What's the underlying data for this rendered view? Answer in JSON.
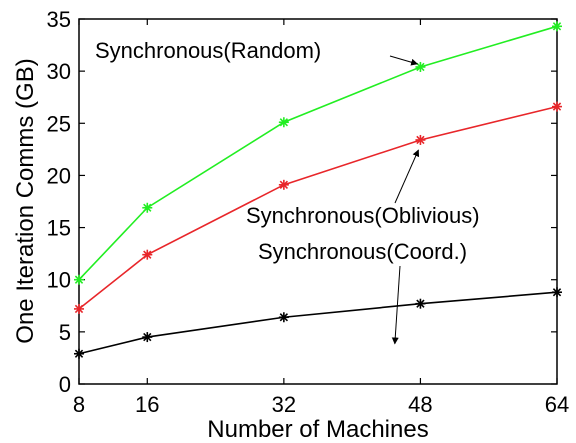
{
  "chart_data": {
    "type": "line",
    "title": "",
    "xlabel": "Number of Machines",
    "ylabel": "One Iteration Comms (GB)",
    "x": [
      8,
      16,
      32,
      48,
      64
    ],
    "xticks": [
      8,
      16,
      32,
      48,
      64
    ],
    "xlim": [
      8,
      64
    ],
    "yticks": [
      0,
      5,
      10,
      15,
      20,
      25,
      30,
      35
    ],
    "ylim": [
      0,
      35
    ],
    "grid": false,
    "legend": "none",
    "series": [
      {
        "name": "Synchronous(Random)",
        "color": "#22ee22",
        "values": [
          10.0,
          16.9,
          25.1,
          30.4,
          34.3
        ]
      },
      {
        "name": "Synchronous(Oblivious)",
        "color": "#e8262a",
        "values": [
          7.2,
          12.4,
          19.1,
          23.4,
          26.6
        ]
      },
      {
        "name": "Synchronous(Coord.)",
        "color": "#000000",
        "values": [
          2.9,
          4.5,
          6.4,
          7.7,
          8.8
        ]
      }
    ],
    "annotations": [
      {
        "text": "Synchronous(Random)",
        "series": 0,
        "point_x": 48
      },
      {
        "text": "Synchronous(Oblivious)",
        "series": 1,
        "point_x": 48
      },
      {
        "text": "Synchronous(Coord.)",
        "series": 2,
        "point_x": 45
      }
    ]
  }
}
